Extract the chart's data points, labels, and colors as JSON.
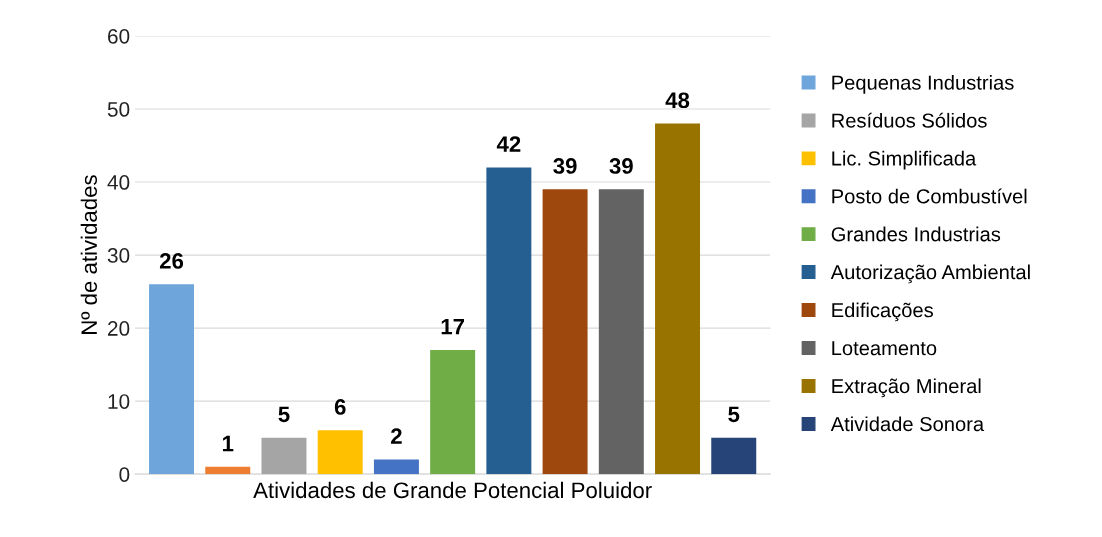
{
  "chart_data": {
    "type": "bar",
    "xlabel": "Atividades de Grande Potencial Poluidor",
    "ylabel": "Nº de atividades",
    "categories": [
      null
    ],
    "series": [
      {
        "name": "Pequenas Industrias",
        "color": "#6ea6dc",
        "values": [
          26
        ]
      },
      {
        "color": "#ed7d31",
        "values": [
          1
        ]
      },
      {
        "name": "Resíduos Sólidos",
        "color": "#a5a5a5",
        "values": [
          5
        ]
      },
      {
        "name": "Lic. Simplificada",
        "color": "#ffc000",
        "values": [
          6
        ]
      },
      {
        "name": "Posto de Combustível",
        "color": "#4472c4",
        "values": [
          2
        ]
      },
      {
        "name": "Grandes Industrias",
        "color": "#70ad47",
        "values": [
          17
        ]
      },
      {
        "name": "Autorização Ambiental",
        "color": "#255e91",
        "values": [
          42
        ]
      },
      {
        "name": "Edificações",
        "color": "#9e480e",
        "values": [
          39
        ]
      },
      {
        "name": "Loteamento",
        "color": "#636363",
        "values": [
          39
        ]
      },
      {
        "name": "Extração Mineral",
        "color": "#997300",
        "values": [
          48
        ]
      },
      {
        "name": "Atividade Sonora",
        "color": "#264478",
        "values": [
          5
        ]
      }
    ],
    "ylim": [
      0,
      60
    ],
    "yticks": [
      0,
      10,
      20,
      30,
      40,
      50,
      60
    ],
    "grid": "y",
    "legend": "right",
    "data_labels": true
  }
}
